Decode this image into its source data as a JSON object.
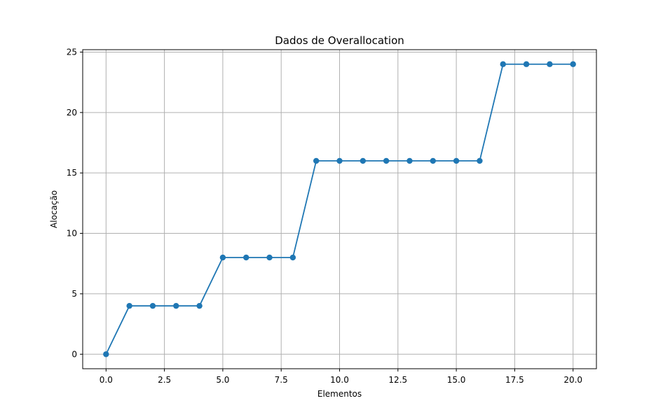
{
  "chart_data": {
    "type": "line",
    "title": "Dados de Overallocation",
    "xlabel": "Elementos",
    "ylabel": "Alocação",
    "xlim": [
      -1.0,
      21.0
    ],
    "ylim": [
      -1.2,
      25.2
    ],
    "x_ticks": [
      0.0,
      2.5,
      5.0,
      7.5,
      10.0,
      12.5,
      15.0,
      17.5,
      20.0
    ],
    "x_tick_labels": [
      "0.0",
      "2.5",
      "5.0",
      "7.5",
      "10.0",
      "12.5",
      "15.0",
      "17.5",
      "20.0"
    ],
    "y_ticks": [
      0,
      5,
      10,
      15,
      20,
      25
    ],
    "y_tick_labels": [
      "0",
      "5",
      "10",
      "15",
      "20",
      "25"
    ],
    "grid": true,
    "marker": "circle",
    "series": [
      {
        "color": "#1f77b4",
        "x": [
          0,
          1,
          2,
          3,
          4,
          5,
          6,
          7,
          8,
          9,
          10,
          11,
          12,
          13,
          14,
          15,
          16,
          17,
          18,
          19,
          20
        ],
        "values": [
          0,
          4,
          4,
          4,
          4,
          8,
          8,
          8,
          8,
          16,
          16,
          16,
          16,
          16,
          16,
          16,
          16,
          24,
          24,
          24,
          24
        ]
      }
    ]
  }
}
